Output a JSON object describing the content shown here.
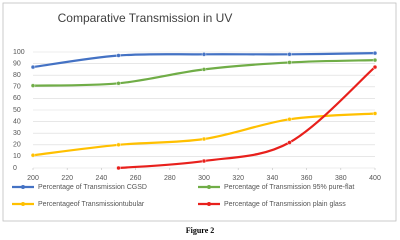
{
  "chart_data": {
    "type": "line",
    "title": "Comparative Transmission in UV",
    "caption": "Figure 2",
    "x": [
      200,
      250,
      300,
      350,
      400
    ],
    "series": [
      {
        "name": "Percentage of Transmission CGSD",
        "color": "#4472c4",
        "values": [
          87,
          97,
          98,
          98,
          99
        ]
      },
      {
        "name": "Percentage of Transmission 95% pure-flat",
        "color": "#70ad47",
        "values": [
          71,
          73,
          85,
          91,
          93
        ]
      },
      {
        "name": "Percentageof Transmissiontubular",
        "color": "#ffc000",
        "values": [
          11,
          20,
          25,
          42,
          47
        ]
      },
      {
        "name": "Percentage of Transmission plain glass",
        "color": "#e8201c",
        "values": [
          null,
          0,
          6,
          22,
          87
        ]
      }
    ],
    "xlim": [
      200,
      400
    ],
    "xticks": [
      200,
      220,
      240,
      260,
      280,
      300,
      320,
      340,
      360,
      380,
      400
    ],
    "ylim": [
      0,
      100
    ],
    "yticks": [
      0,
      10,
      20,
      30,
      40,
      50,
      60,
      70,
      80,
      90,
      100
    ],
    "grid": true,
    "legend": "bottom"
  }
}
